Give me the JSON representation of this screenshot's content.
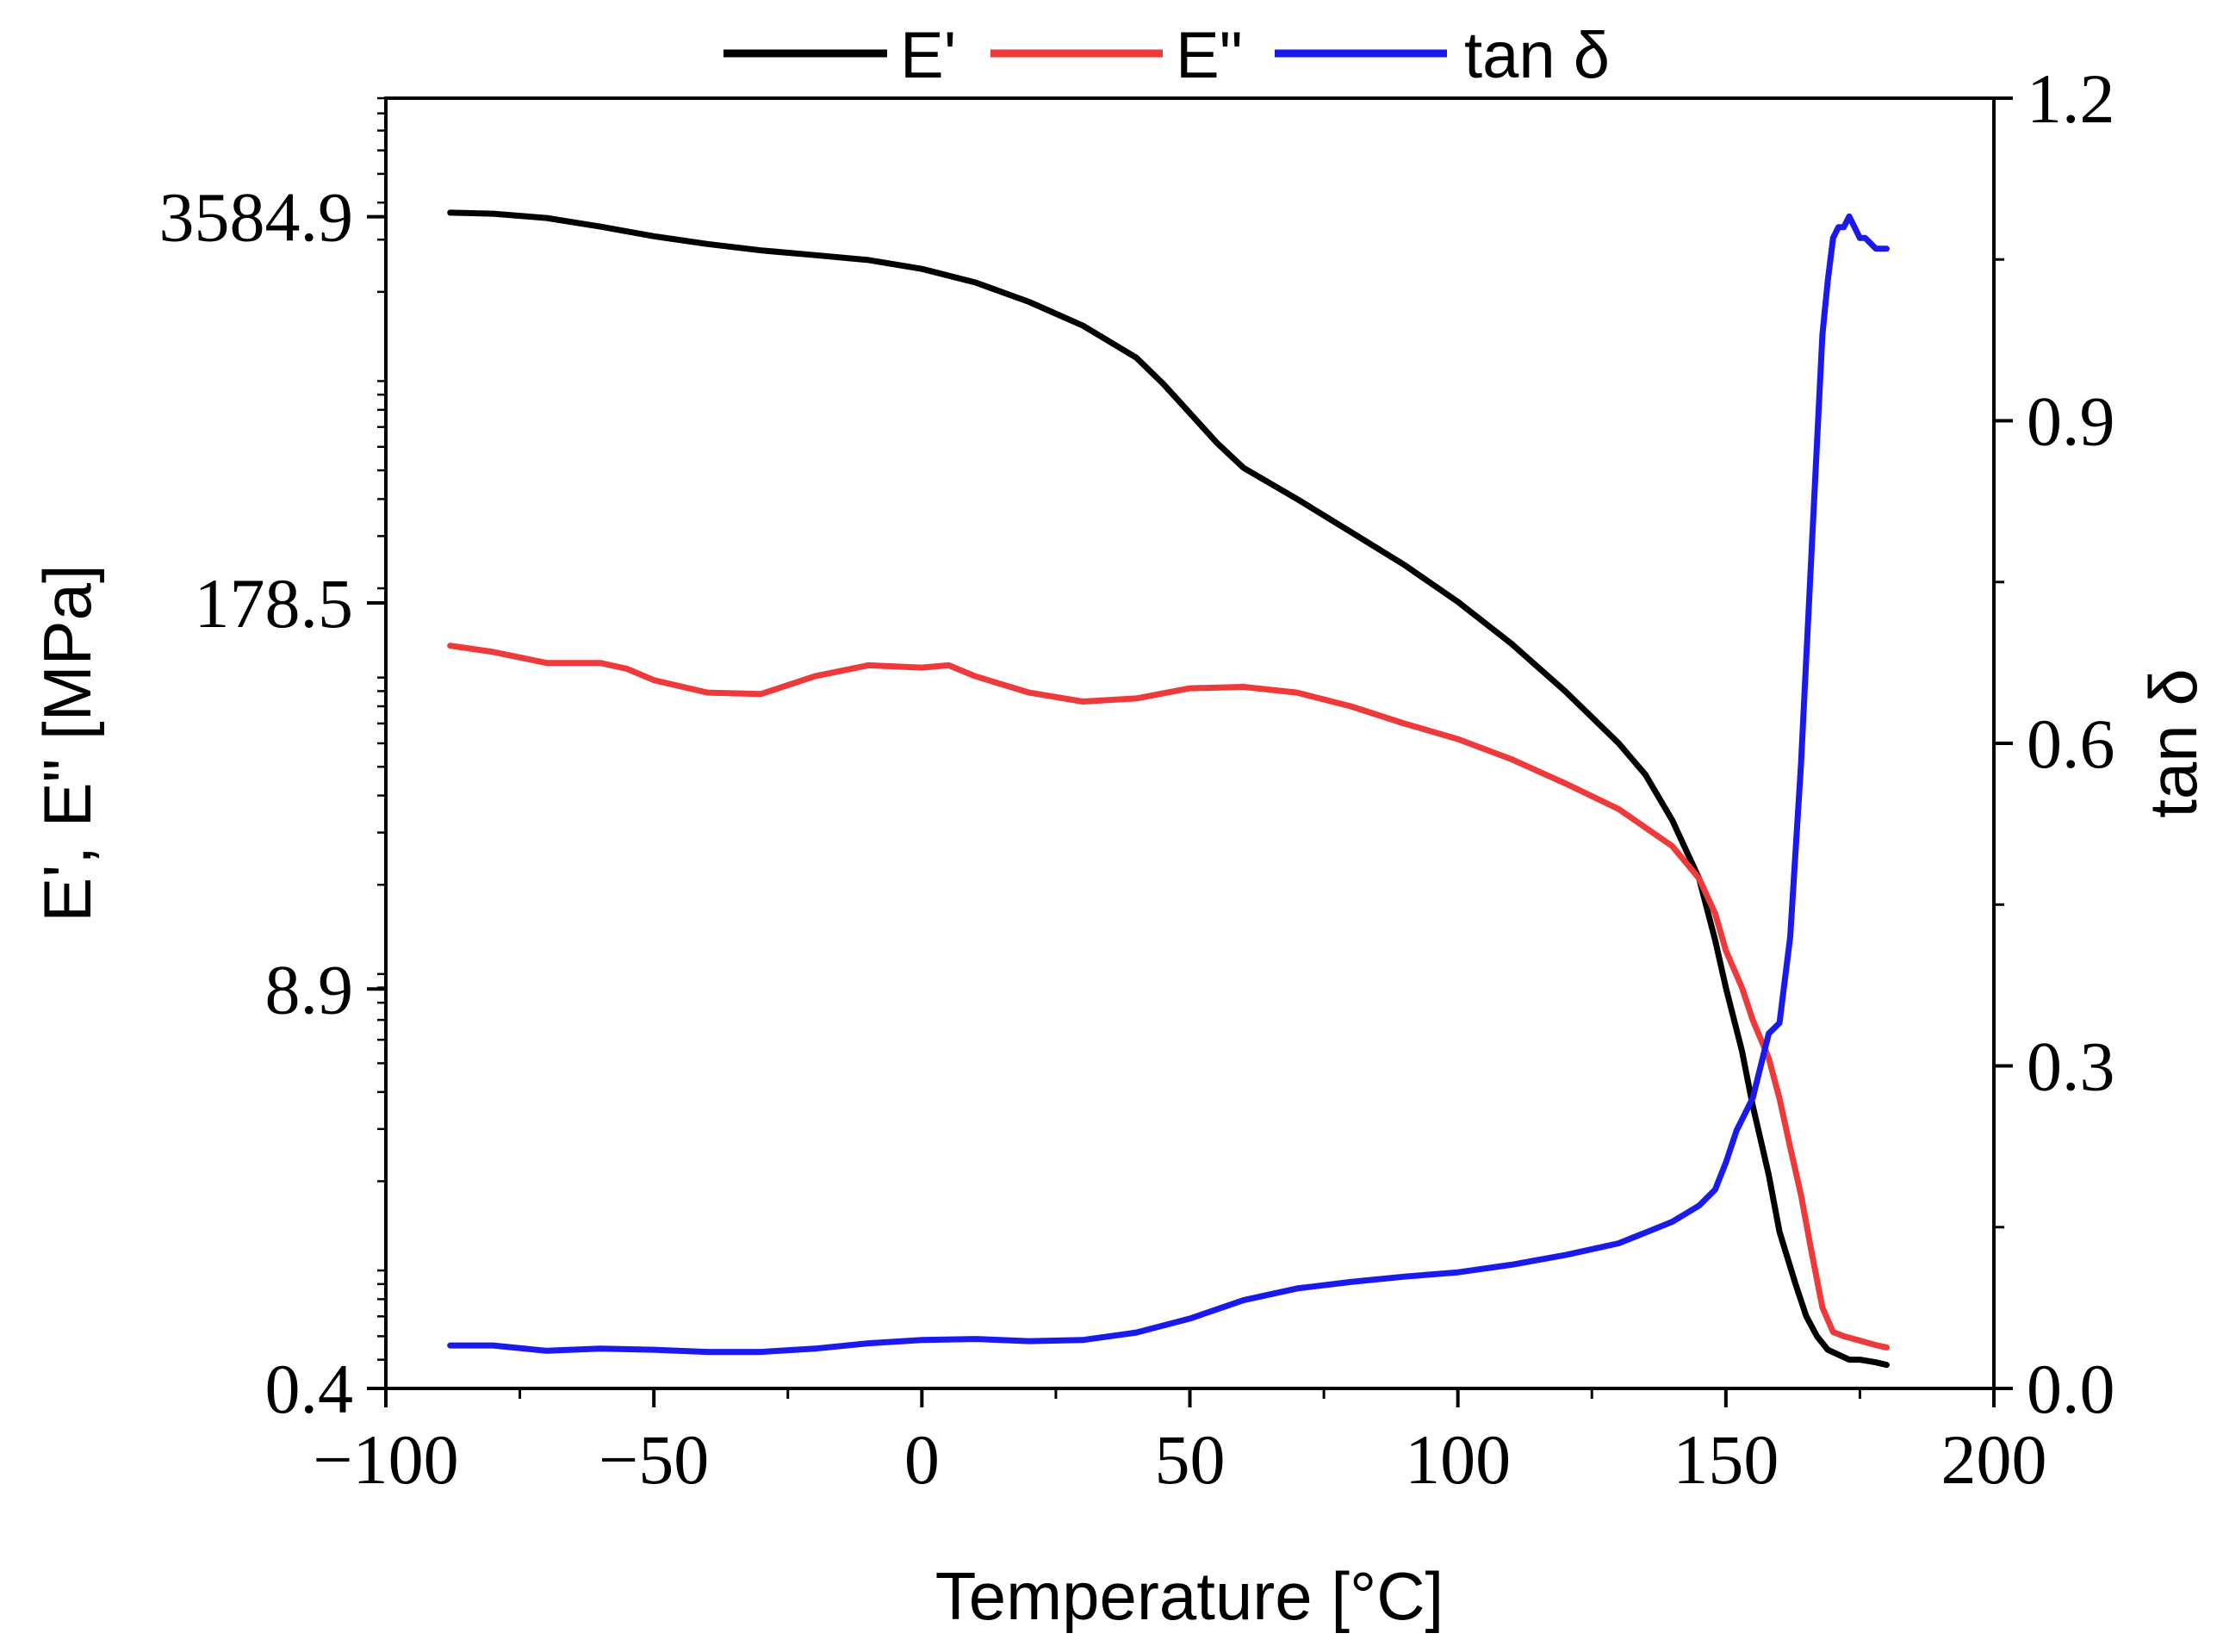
{
  "chart_data": {
    "type": "line",
    "title": "",
    "xlabel": "Temperature [°C]",
    "ylabel": "E', E\" [MPa]",
    "ylabel_right": "tan δ",
    "xlim": [
      -100,
      200
    ],
    "x_ticks": [
      "−100",
      "−50",
      "0",
      "50",
      "100",
      "150",
      "200"
    ],
    "x_tick_values": [
      -100,
      -50,
      0,
      50,
      100,
      150,
      200
    ],
    "ylim_left_log": [
      0.4,
      9000
    ],
    "y_ticks_left": [
      "0.4",
      "8.9",
      "178.5",
      "3584.9"
    ],
    "y_tick_values_left": [
      0.4,
      8.9,
      178.5,
      3584.9
    ],
    "ylim_right": [
      0.0,
      1.2
    ],
    "y_ticks_right": [
      "0.0",
      "0.3",
      "0.6",
      "0.9",
      "1.2"
    ],
    "y_tick_values_right": [
      0.0,
      0.3,
      0.6,
      0.9,
      1.2
    ],
    "legend": {
      "placement": "top-center",
      "entries": [
        {
          "label": "E'",
          "series": "E_prime"
        },
        {
          "label": "E\"",
          "series": "E_double_prime"
        },
        {
          "label": "tan δ",
          "series": "tan_delta"
        }
      ]
    },
    "series": [
      {
        "id": "E_prime",
        "name": "E'",
        "axis": "left",
        "color": "#000000",
        "x": [
          -88,
          -80,
          -70,
          -60,
          -50,
          -40,
          -30,
          -20,
          -10,
          0,
          10,
          20,
          30,
          40,
          45,
          50,
          55,
          60,
          70,
          80,
          90,
          100,
          110,
          120,
          130,
          135,
          140,
          145,
          148,
          150,
          153,
          155,
          158,
          160,
          163,
          165,
          167,
          169,
          171,
          173,
          175,
          178,
          180
        ],
        "values": [
          3700,
          3670,
          3550,
          3320,
          3080,
          2900,
          2760,
          2660,
          2560,
          2390,
          2150,
          1850,
          1540,
          1200,
          980,
          780,
          620,
          510,
          400,
          310,
          240,
          180,
          130,
          90,
          60,
          47,
          33,
          21,
          13,
          9,
          5.5,
          3.6,
          2.1,
          1.35,
          0.9,
          0.7,
          0.6,
          0.54,
          0.52,
          0.5,
          0.5,
          0.49,
          0.48
        ]
      },
      {
        "id": "E_double_prime",
        "name": "E\"",
        "axis": "left",
        "color": "#ee3a3a",
        "x": [
          -88,
          -80,
          -70,
          -60,
          -55,
          -50,
          -40,
          -30,
          -20,
          -10,
          0,
          5,
          10,
          20,
          30,
          40,
          50,
          60,
          70,
          80,
          90,
          100,
          110,
          120,
          130,
          140,
          145,
          148,
          150,
          153,
          155,
          158,
          160,
          162,
          164,
          166,
          168,
          170,
          172,
          175,
          178,
          180
        ],
        "values": [
          128,
          122,
          112,
          112,
          107,
          98,
          89,
          88,
          101,
          110,
          108,
          110,
          101,
          89,
          83,
          85,
          92,
          93,
          89,
          80,
          70,
          62,
          53,
          44,
          36,
          27,
          21,
          16,
          12,
          9,
          7,
          5.2,
          3.8,
          2.6,
          1.8,
          1.15,
          0.75,
          0.62,
          0.6,
          0.58,
          0.56,
          0.55
        ]
      },
      {
        "id": "tan_delta",
        "name": "tan δ",
        "axis": "right",
        "color": "#1a1aee",
        "x": [
          -88,
          -80,
          -70,
          -60,
          -50,
          -40,
          -30,
          -20,
          -10,
          0,
          10,
          20,
          30,
          40,
          50,
          60,
          70,
          80,
          90,
          100,
          110,
          120,
          130,
          140,
          145,
          148,
          150,
          152,
          155,
          158,
          160,
          162,
          164,
          166,
          168,
          169,
          170,
          171,
          172,
          173,
          174,
          175,
          176,
          178,
          180
        ],
        "values": [
          0.04,
          0.04,
          0.035,
          0.037,
          0.036,
          0.034,
          0.034,
          0.037,
          0.042,
          0.045,
          0.046,
          0.044,
          0.045,
          0.052,
          0.065,
          0.082,
          0.093,
          0.099,
          0.104,
          0.108,
          0.115,
          0.124,
          0.135,
          0.155,
          0.17,
          0.185,
          0.21,
          0.24,
          0.27,
          0.33,
          0.34,
          0.42,
          0.58,
          0.78,
          0.98,
          1.03,
          1.07,
          1.08,
          1.08,
          1.09,
          1.08,
          1.07,
          1.07,
          1.06,
          1.06
        ]
      }
    ]
  }
}
